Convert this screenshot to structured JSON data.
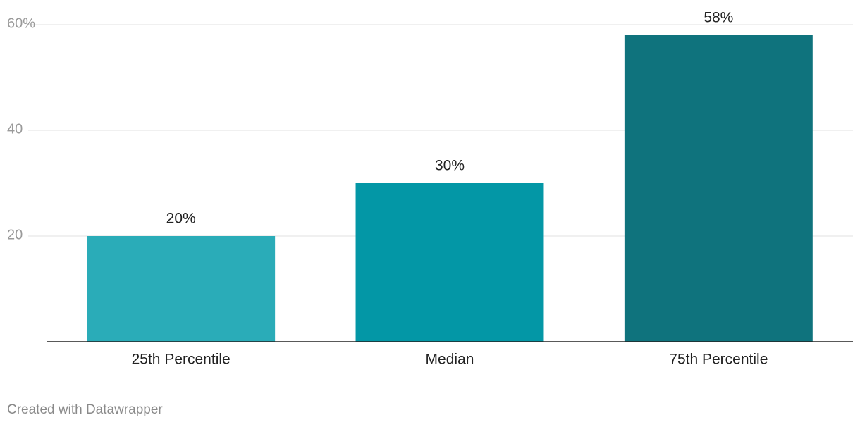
{
  "chart_data": {
    "type": "bar",
    "categories": [
      "25th Percentile",
      "Median",
      "75th Percentile"
    ],
    "values": [
      20,
      30,
      58
    ],
    "value_labels": [
      "20%",
      "30%",
      "58%"
    ],
    "colors": [
      "#2aacb8",
      "#0397a6",
      "#0f737d"
    ],
    "ylim": [
      0,
      60
    ],
    "yticks": [
      20,
      40,
      {
        "value": 60,
        "label": "60%"
      }
    ],
    "grid": true,
    "footer": "Created with Datawrapper"
  }
}
